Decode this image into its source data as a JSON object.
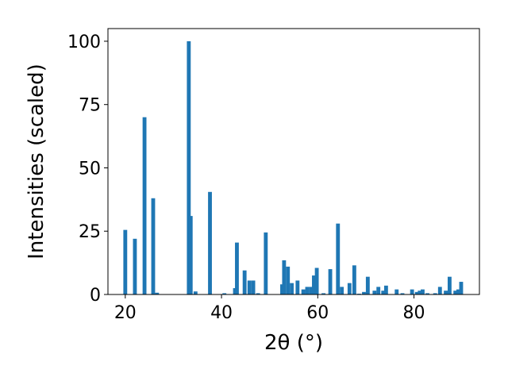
{
  "chart_data": {
    "type": "bar",
    "xlabel": "2θ (°)",
    "ylabel": "Intensities (scaled)",
    "xlim": [
      16.4,
      93.6
    ],
    "ylim": [
      0,
      105
    ],
    "xticks": [
      20,
      40,
      60,
      80
    ],
    "yticks": [
      0,
      25,
      50,
      75,
      100
    ],
    "grid": false,
    "bar_color": "#1f77b4",
    "bar_width": 0.8,
    "series": [
      {
        "x": [
          20.0,
          22.0,
          24.0,
          25.8,
          26.6,
          33.2,
          33.6,
          34.6,
          37.6,
          40.6,
          42.8,
          43.2,
          44.8,
          45.8,
          46.6,
          47.6,
          49.2,
          52.6,
          53.0,
          53.8,
          54.6,
          55.8,
          57.0,
          57.8,
          58.6,
          59.2,
          59.8,
          61.2,
          62.6,
          64.2,
          65.0,
          66.6,
          67.6,
          68.6,
          69.6,
          70.4,
          71.8,
          72.6,
          73.6,
          74.2,
          76.4,
          77.6,
          79.6,
          80.6,
          81.2,
          81.8,
          82.8,
          84.4,
          85.4,
          86.6,
          87.4,
          88.6,
          89.2,
          89.8
        ],
        "values": [
          25.5,
          22,
          70,
          38,
          0.7,
          100,
          31,
          1.2,
          40.5,
          0.5,
          2.5,
          20.5,
          9.5,
          5.5,
          5.5,
          0.5,
          24.5,
          4,
          13.5,
          11,
          4.5,
          5.5,
          2,
          3,
          3,
          7.5,
          10.5,
          0.5,
          10,
          28,
          3,
          4.5,
          11.5,
          0.3,
          1,
          7,
          1.5,
          3,
          1.5,
          3.5,
          2,
          0.5,
          2,
          1,
          1.5,
          2,
          0.5,
          0.5,
          3,
          1.5,
          7,
          1.5,
          2,
          5
        ]
      }
    ]
  }
}
